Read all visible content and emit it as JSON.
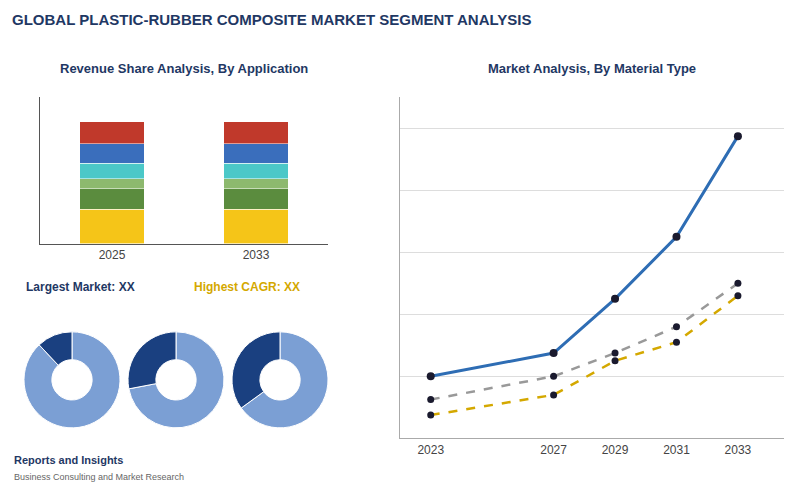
{
  "title": "GLOBAL PLASTIC-RUBBER COMPOSITE MARKET SEGMENT ANALYSIS",
  "annotations": [
    "Reports and Insights",
    "Business Consulting and Market Research"
  ],
  "chart_data": [
    {
      "type": "bar",
      "title": "Revenue Share Analysis, By Application",
      "categories": [
        "2025",
        "2033"
      ],
      "stacked": true,
      "series": [
        {
          "color": "#f5c518",
          "values": [
            28,
            28
          ]
        },
        {
          "color": "#5b8c3e",
          "values": [
            17,
            17
          ]
        },
        {
          "color": "#8db96e",
          "values": [
            8,
            8
          ]
        },
        {
          "color": "#4bc8c8",
          "values": [
            13,
            13
          ]
        },
        {
          "color": "#3a6ebc",
          "values": [
            16,
            16
          ]
        },
        {
          "color": "#c0392b",
          "values": [
            18,
            18
          ]
        }
      ],
      "ylim": [
        0,
        120
      ],
      "grid": false,
      "tick_labels": "x",
      "annotations": [
        {
          "text": "Largest Market: XX",
          "color": "#1f3864"
        },
        {
          "text": "Highest CAGR: XX",
          "color": "#d4a800"
        }
      ]
    },
    {
      "type": "pie",
      "values": [
        88,
        12
      ],
      "colors": [
        "#7b9fd4",
        "#1a4080"
      ]
    },
    {
      "type": "pie",
      "values": [
        72,
        28
      ],
      "colors": [
        "#7b9fd4",
        "#1a4080"
      ]
    },
    {
      "type": "pie",
      "values": [
        65,
        35
      ],
      "colors": [
        "#7b9fd4",
        "#1a4080"
      ]
    },
    {
      "type": "line",
      "title": "Market Analysis, By Material Type",
      "x": [
        2023,
        2027,
        2029,
        2031,
        2033
      ],
      "series": [
        {
          "color": "#2e6db4",
          "line_style": "solid",
          "marker": "circle",
          "values": [
            4.0,
            5.5,
            9.0,
            13.0,
            19.5
          ]
        },
        {
          "color": "#999999",
          "line_style": "dashed",
          "marker": "circle",
          "values": [
            2.5,
            4.0,
            5.5,
            7.2,
            10.0
          ]
        },
        {
          "color": "#d4a800",
          "line_style": "dashed",
          "marker": "circle",
          "values": [
            1.5,
            2.8,
            5.0,
            6.2,
            9.2
          ]
        }
      ],
      "xlim": [
        2022.0,
        2034.5
      ],
      "xticks": [
        2023,
        2027,
        2029,
        2031,
        2033
      ],
      "ylim": [
        0,
        22
      ],
      "yticks": [
        4,
        8,
        12,
        16,
        20
      ],
      "grid": true,
      "tick_labels": "x"
    }
  ]
}
